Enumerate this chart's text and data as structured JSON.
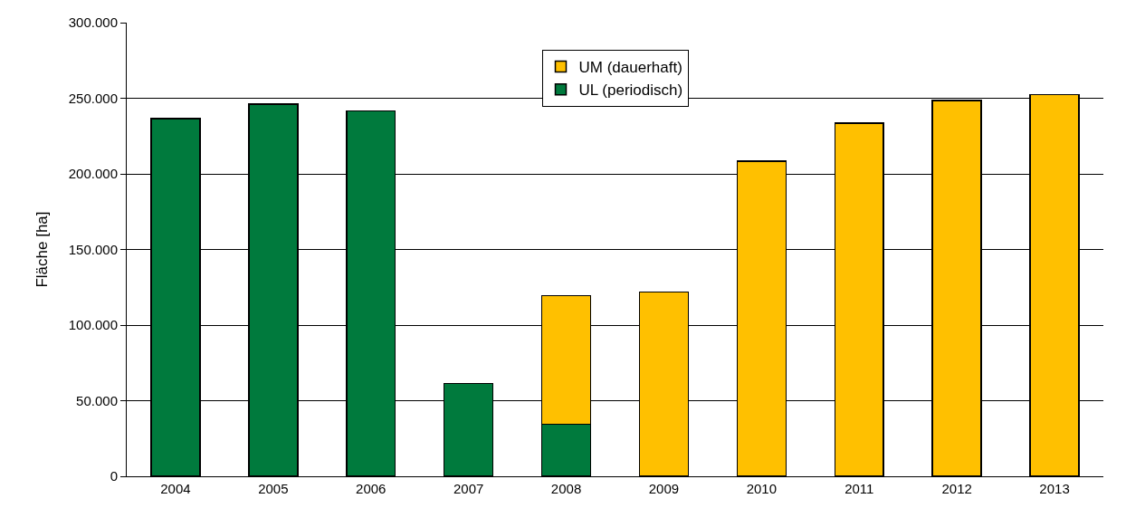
{
  "chart_data": {
    "type": "bar",
    "stacked": true,
    "ylabel": "Fläche [ha]",
    "categories": [
      "2004",
      "2005",
      "2006",
      "2007",
      "2008",
      "2009",
      "2010",
      "2011",
      "2012",
      "2013"
    ],
    "series": [
      {
        "name": "UL (periodisch)",
        "color": "#007a3d",
        "values": [
          236500,
          246000,
          241500,
          61500,
          34500,
          null,
          null,
          null,
          null,
          null
        ]
      },
      {
        "name": "UM (dauerhaft)",
        "color": "#ffc000",
        "values": [
          null,
          null,
          null,
          null,
          85000,
          122000,
          208500,
          233500,
          248500,
          252500
        ]
      }
    ],
    "ylim": [
      0,
      300000
    ],
    "yticks": [
      {
        "value": 0,
        "label": "0"
      },
      {
        "value": 50000,
        "label": "50.000"
      },
      {
        "value": 100000,
        "label": "100.000"
      },
      {
        "value": 150000,
        "label": "150.000"
      },
      {
        "value": 200000,
        "label": "200.000"
      },
      {
        "value": 250000,
        "label": "250.000"
      },
      {
        "value": 300000,
        "label": "300.000"
      }
    ],
    "grid": "y",
    "legend": "top"
  }
}
